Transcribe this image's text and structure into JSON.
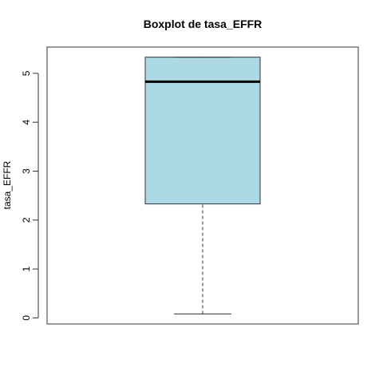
{
  "chart_data": {
    "type": "boxplot",
    "title": "Boxplot de tasa_EFFR",
    "xlabel": "",
    "ylabel": "tasa_EFFR",
    "ylim": [
      0,
      5.4
    ],
    "yticks": [
      0,
      1,
      2,
      3,
      4,
      5
    ],
    "grid": false,
    "box": {
      "min": 0.08,
      "q1": 2.33,
      "median": 4.83,
      "q3": 5.33,
      "max": 5.33,
      "fill": "#add8e6",
      "stroke": "#333333"
    }
  }
}
